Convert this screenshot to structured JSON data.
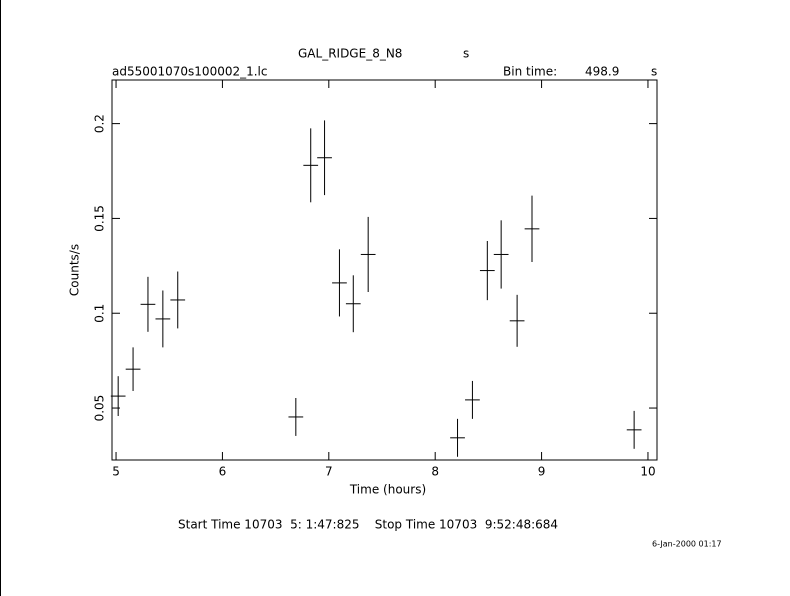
{
  "chart_data": {
    "type": "errorbar",
    "title": "GAL_RIDGE_8_N8",
    "title_unit": "s",
    "file_name": "ad55001070s100002_1.lc",
    "bin_time_label": "Bin time:",
    "bin_time": "498.9",
    "bin_time_unit": "s",
    "xlabel": "Time (hours)",
    "ylabel": "Counts/s",
    "footer": "Start Time 10703  5: 1:47:825    Stop Time 10703  9:52:48:684",
    "date_stamp": "6-Jan-2000 01:17",
    "xlim": [
      4.962,
      10.085
    ],
    "ylim": [
      0.0226,
      0.223
    ],
    "xticks": [
      5,
      6,
      7,
      8,
      9,
      10
    ],
    "yticks": [
      0.05,
      0.1,
      0.15,
      0.2
    ],
    "xerr": 0.0693,
    "series": [
      {
        "color": "#000000",
        "x": [
          5.02,
          5.16,
          5.3,
          5.44,
          5.58,
          6.69,
          6.83,
          6.96,
          7.1,
          7.23,
          7.37,
          8.21,
          8.35,
          8.49,
          8.62,
          8.77,
          8.91,
          9.87
        ],
        "values": [
          0.0563,
          0.0705,
          0.1047,
          0.097,
          0.107,
          0.0453,
          0.178,
          0.182,
          0.116,
          0.105,
          0.131,
          0.0343,
          0.0543,
          0.1225,
          0.131,
          0.096,
          0.1445,
          0.0385
        ],
        "yerr": [
          0.0105,
          0.0115,
          0.0145,
          0.015,
          0.015,
          0.01,
          0.0195,
          0.0197,
          0.0177,
          0.015,
          0.0198,
          0.01,
          0.01,
          0.0156,
          0.018,
          0.0137,
          0.0175,
          0.01
        ]
      }
    ]
  }
}
